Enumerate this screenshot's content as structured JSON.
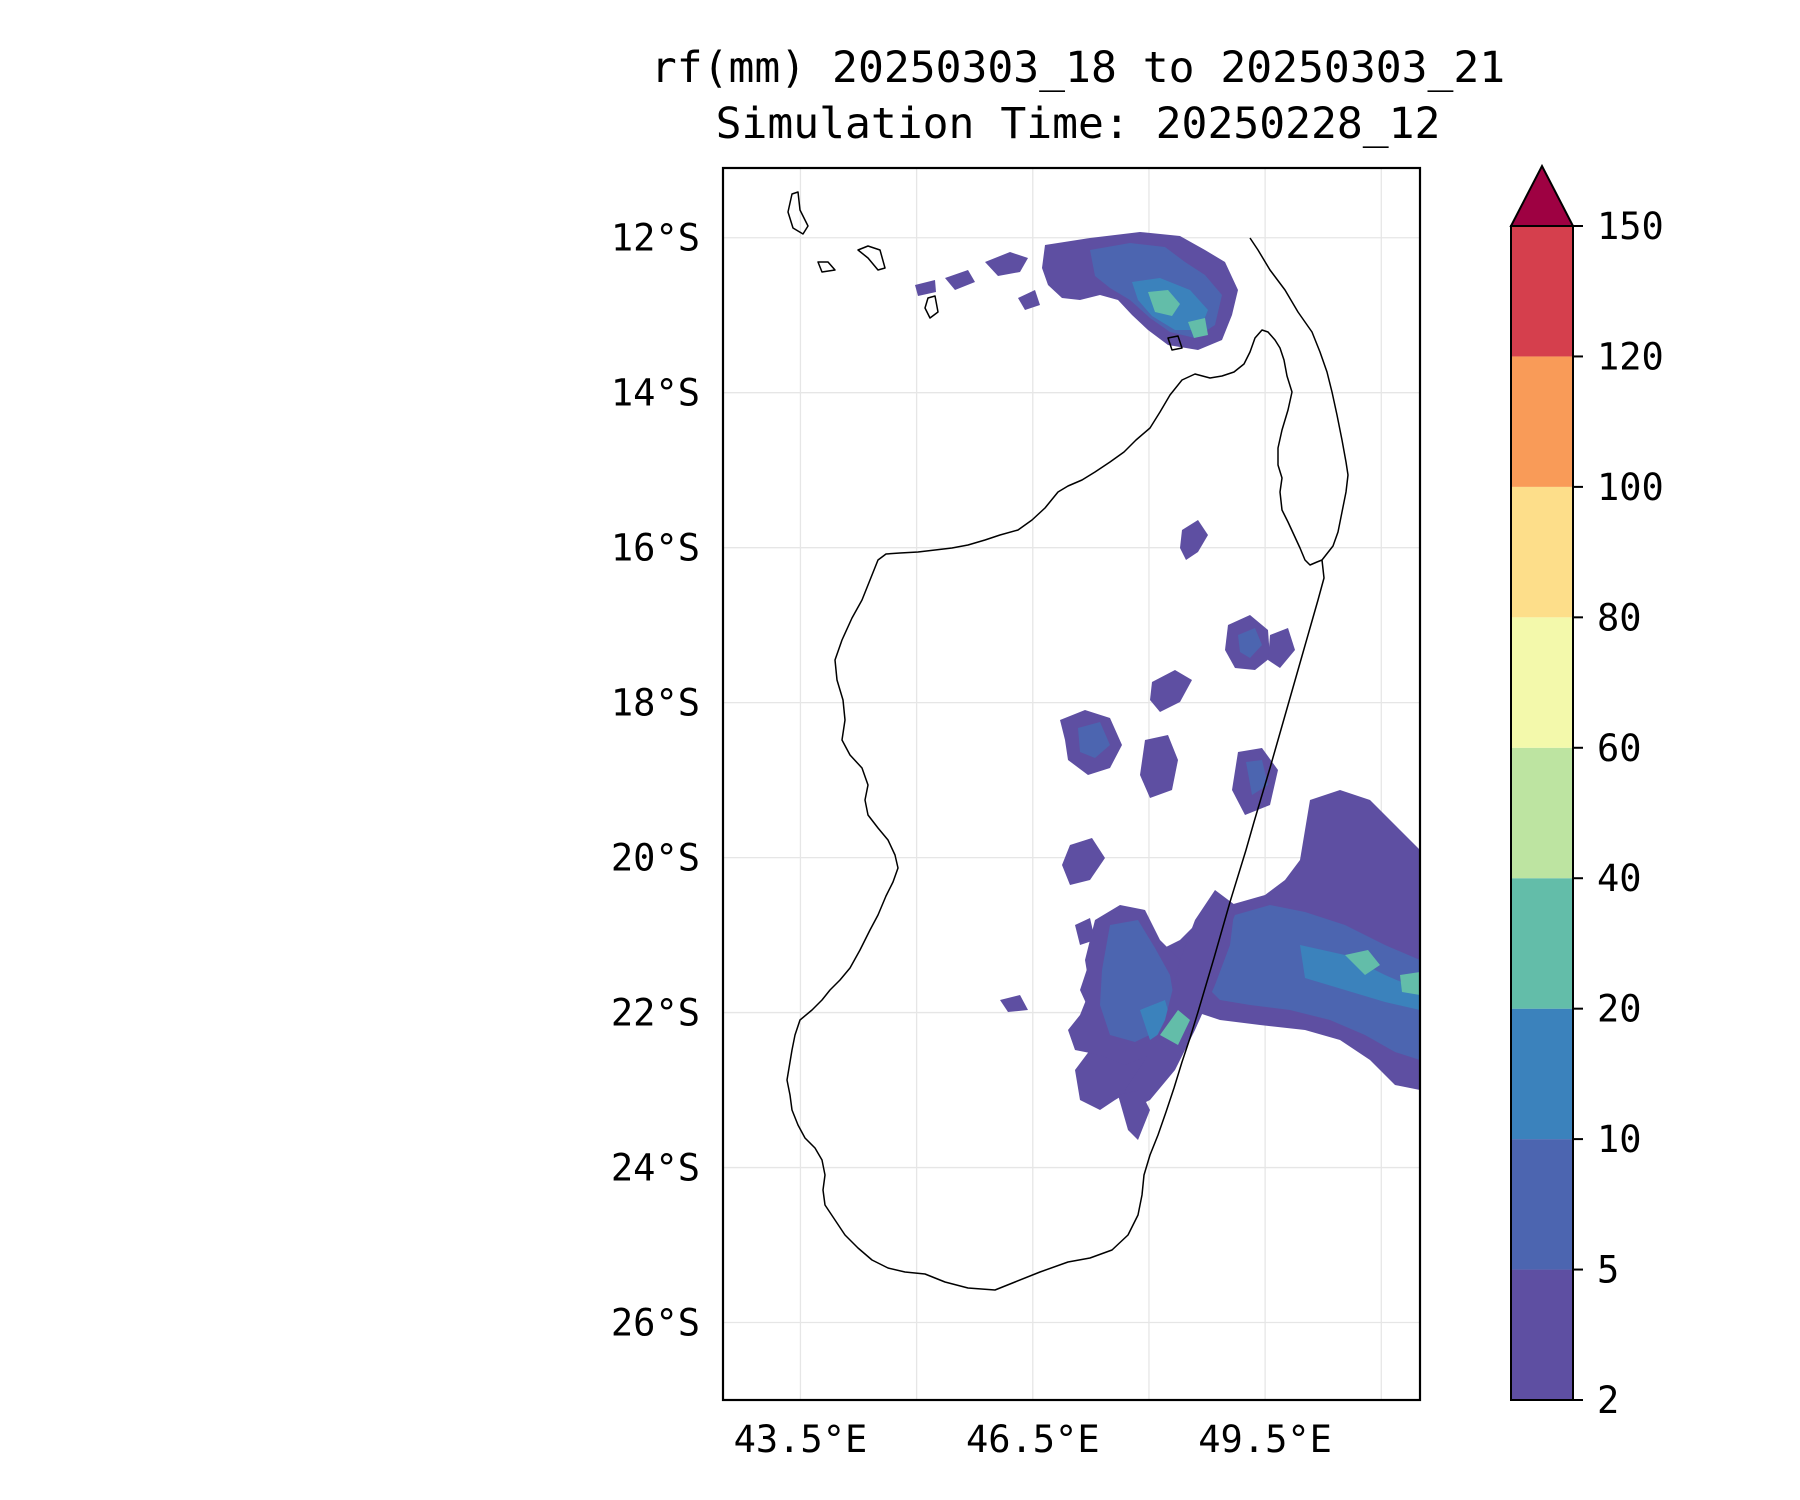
{
  "title": {
    "line1": "rf(mm) 20250303_18 to 20250303_21",
    "line2": "Simulation Time: 20250228_12"
  },
  "map": {
    "lon_range": [
      42.5,
      51.5
    ],
    "lat_range": [
      -27.0,
      -11.1
    ],
    "x_ticks": [
      {
        "lon": 43.5,
        "label": "43.5°E"
      },
      {
        "lon": 46.5,
        "label": "46.5°E"
      },
      {
        "lon": 49.5,
        "label": "49.5°E"
      }
    ],
    "x_grid_lons": [
      43.5,
      45.0,
      46.5,
      48.0,
      49.5,
      51.0
    ],
    "y_ticks": [
      {
        "lat": -12,
        "label": "12°S"
      },
      {
        "lat": -14,
        "label": "14°S"
      },
      {
        "lat": -16,
        "label": "16°S"
      },
      {
        "lat": -18,
        "label": "18°S"
      },
      {
        "lat": -20,
        "label": "20°S"
      },
      {
        "lat": -22,
        "label": "22°S"
      },
      {
        "lat": -24,
        "label": "24°S"
      },
      {
        "lat": -26,
        "label": "26°S"
      }
    ],
    "grid": true
  },
  "colorbar": {
    "levels": [
      {
        "value": 2,
        "label": "2"
      },
      {
        "value": 5,
        "label": "5"
      },
      {
        "value": 10,
        "label": "10"
      },
      {
        "value": 20,
        "label": "20"
      },
      {
        "value": 40,
        "label": "40"
      },
      {
        "value": 60,
        "label": "60"
      },
      {
        "value": 80,
        "label": "80"
      },
      {
        "value": 100,
        "label": "100"
      },
      {
        "value": 120,
        "label": "120"
      },
      {
        "value": 150,
        "label": "150"
      }
    ],
    "colors": [
      "#5e4fa2",
      "#4c65b0",
      "#3b82bc",
      "#63bda9",
      "#bde4a1",
      "#f3f9ab",
      "#fdde8a",
      "#f99b58",
      "#d53f4d"
    ],
    "extend_max_color": "#9e0142",
    "extend": "max"
  }
}
